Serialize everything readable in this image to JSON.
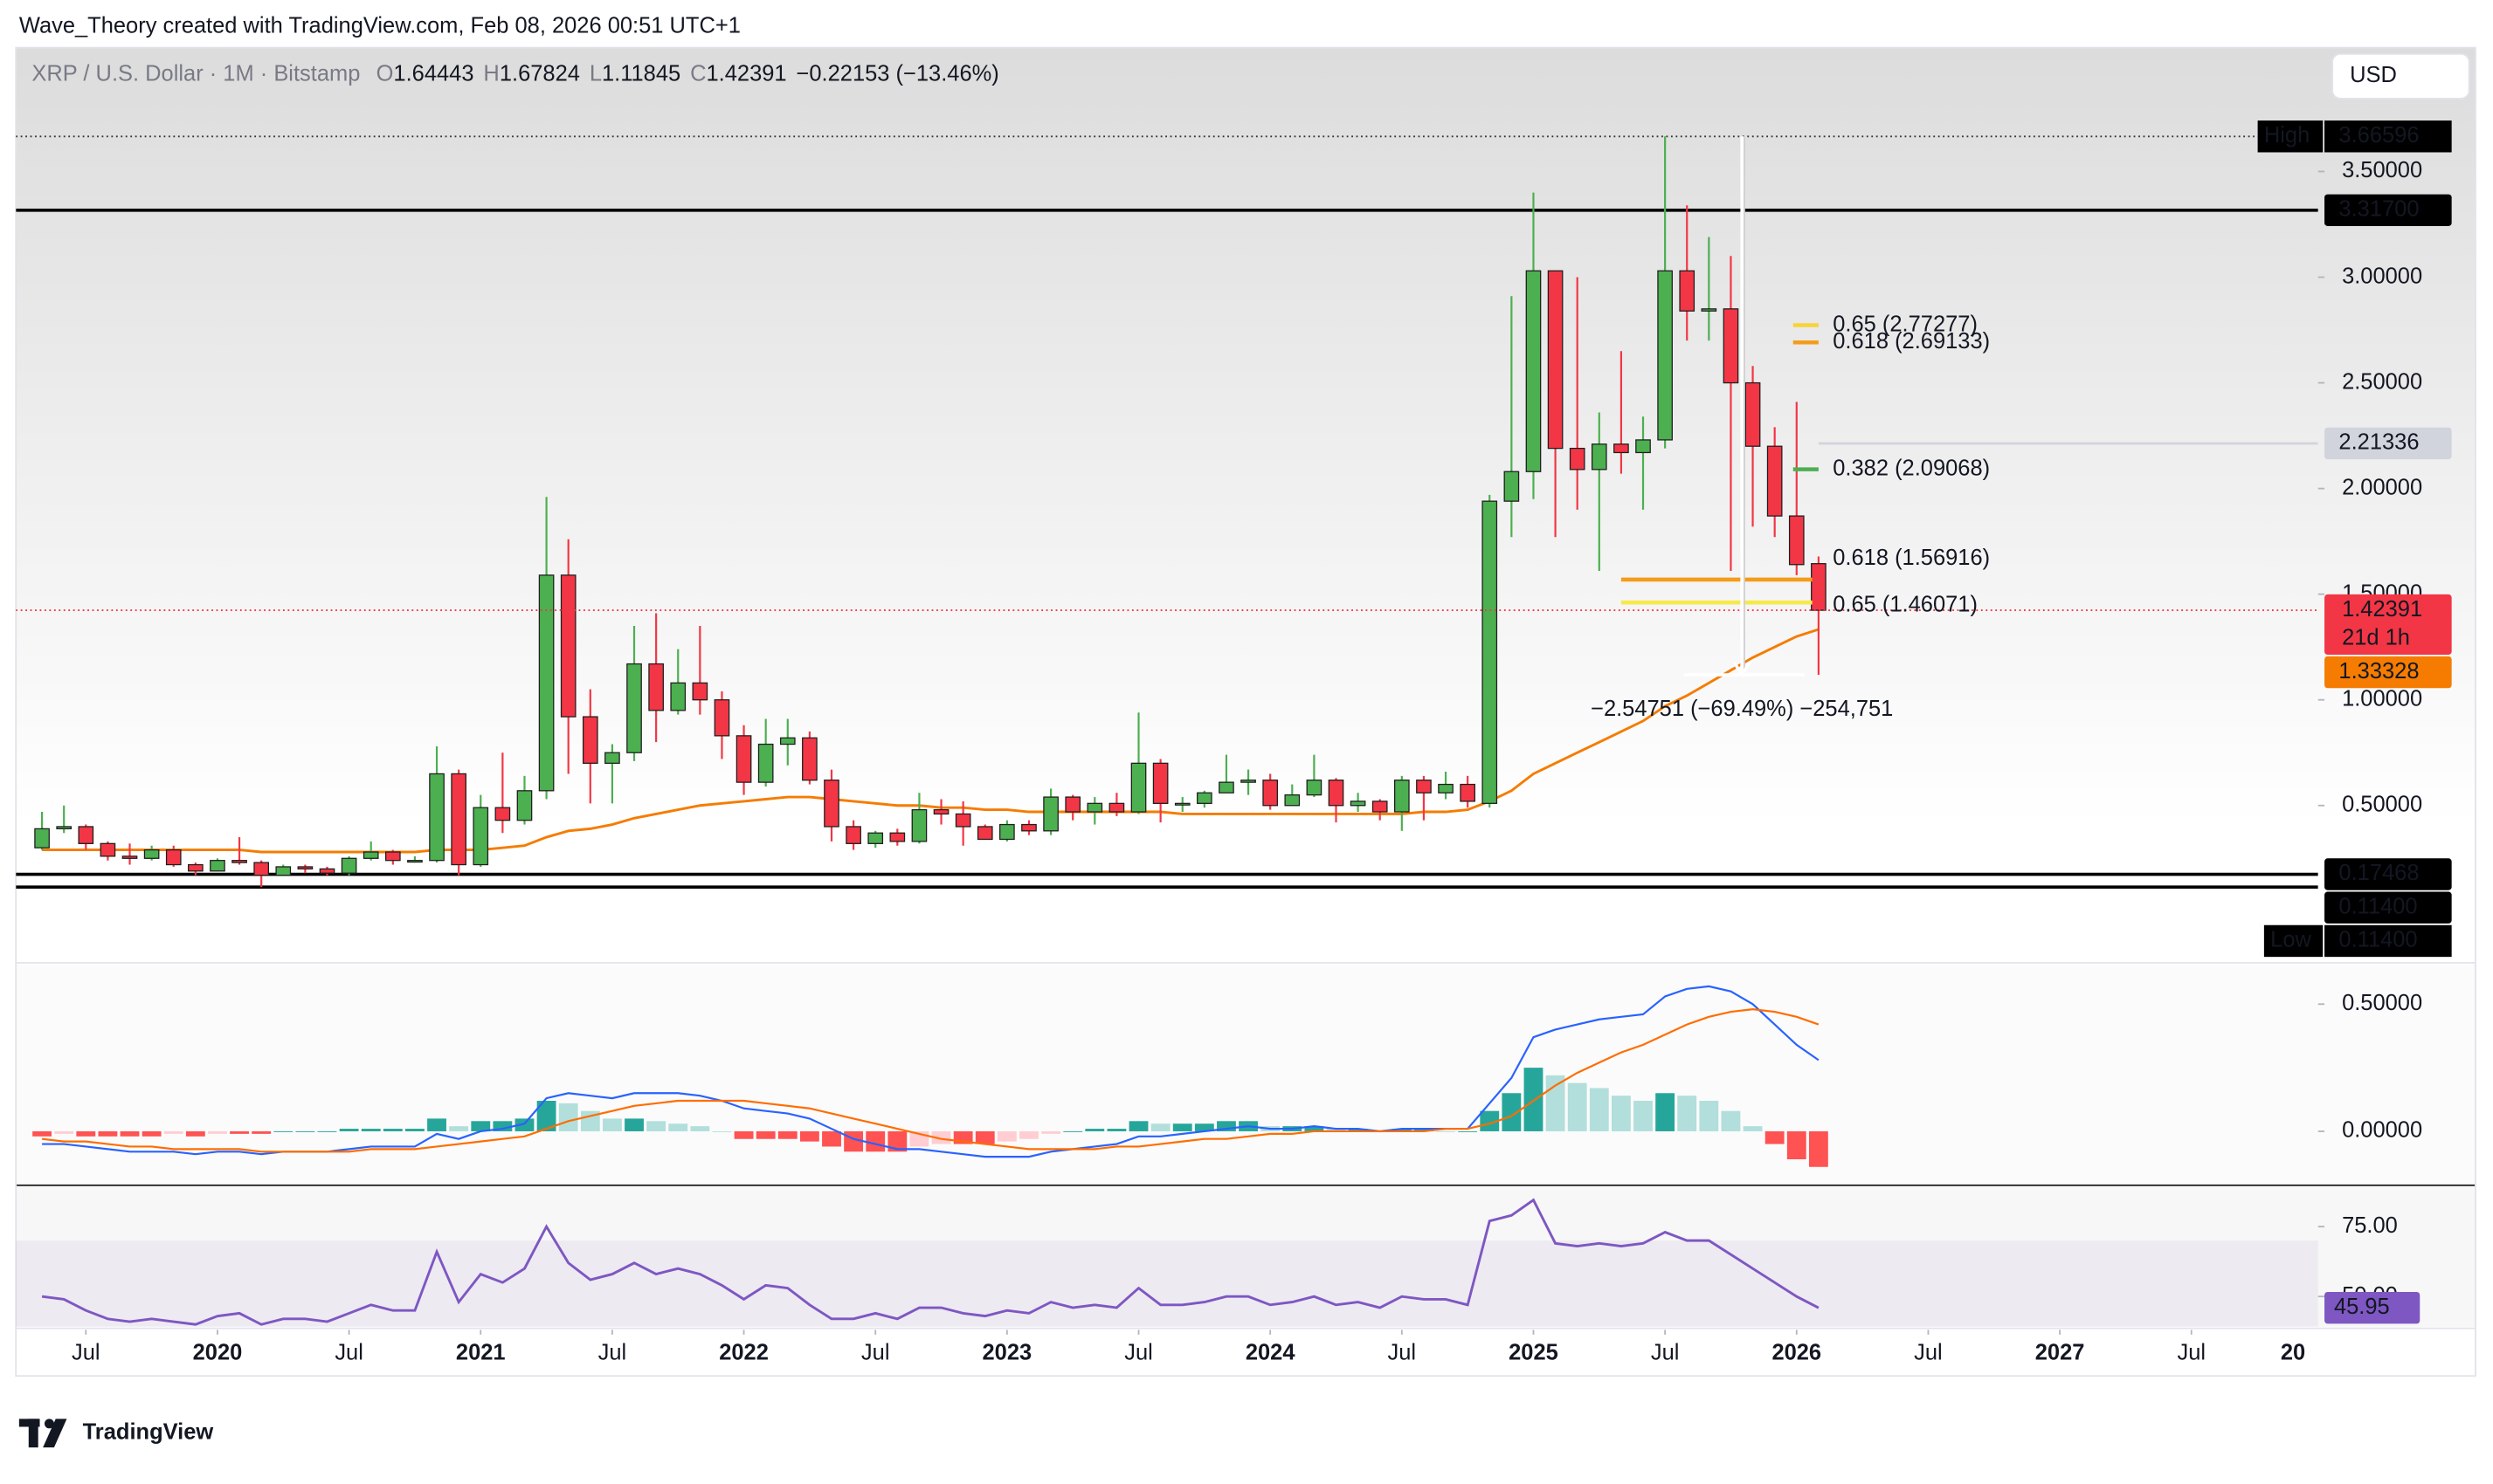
{
  "header": {
    "credit": "Wave_Theory created with TradingView.com, Feb 08, 2026 00:51 UTC+1",
    "currency": "USD"
  },
  "footer": {
    "brand": "TradingView"
  },
  "chart_data": [
    {
      "type": "candlestick",
      "title": "XRP / U.S. Dollar · 1M · Bitstamp",
      "legend_keys": [
        "O",
        "H",
        "L",
        "C"
      ],
      "change_label": "−0.22153 (−13.46%)",
      "up_color": "#4caf50",
      "down_color": "#f23645",
      "x": [
        "2019-05",
        "2019-06",
        "2019-07",
        "2019-08",
        "2019-09",
        "2019-10",
        "2019-11",
        "2019-12",
        "2020-01",
        "2020-02",
        "2020-03",
        "2020-04",
        "2020-05",
        "2020-06",
        "2020-07",
        "2020-08",
        "2020-09",
        "2020-10",
        "2020-11",
        "2020-12",
        "2021-01",
        "2021-02",
        "2021-03",
        "2021-04",
        "2021-05",
        "2021-06",
        "2021-07",
        "2021-08",
        "2021-09",
        "2021-10",
        "2021-11",
        "2021-12",
        "2022-01",
        "2022-02",
        "2022-03",
        "2022-04",
        "2022-05",
        "2022-06",
        "2022-07",
        "2022-08",
        "2022-09",
        "2022-10",
        "2022-11",
        "2022-12",
        "2023-01",
        "2023-02",
        "2023-03",
        "2023-04",
        "2023-05",
        "2023-06",
        "2023-07",
        "2023-08",
        "2023-09",
        "2023-10",
        "2023-11",
        "2023-12",
        "2024-01",
        "2024-02",
        "2024-03",
        "2024-04",
        "2024-05",
        "2024-06",
        "2024-07",
        "2024-08",
        "2024-09",
        "2024-10",
        "2024-11",
        "2024-12",
        "2025-01",
        "2025-02",
        "2025-03",
        "2025-04",
        "2025-05",
        "2025-06",
        "2025-07",
        "2025-08",
        "2025-09",
        "2025-10",
        "2025-11",
        "2025-12",
        "2026-01",
        "2026-02"
      ],
      "open": [
        0.3,
        0.39,
        0.4,
        0.32,
        0.26,
        0.25,
        0.29,
        0.22,
        0.19,
        0.24,
        0.23,
        0.17,
        0.21,
        0.2,
        0.18,
        0.25,
        0.28,
        0.24,
        0.24,
        0.65,
        0.22,
        0.49,
        0.43,
        0.57,
        1.59,
        0.92,
        0.7,
        0.75,
        1.17,
        0.95,
        1.08,
        1.0,
        0.83,
        0.61,
        0.79,
        0.82,
        0.62,
        0.4,
        0.32,
        0.37,
        0.33,
        0.48,
        0.46,
        0.4,
        0.34,
        0.41,
        0.38,
        0.54,
        0.47,
        0.51,
        0.47,
        0.7,
        0.51,
        0.51,
        0.56,
        0.61,
        0.62,
        0.5,
        0.55,
        0.62,
        0.5,
        0.52,
        0.47,
        0.62,
        0.56,
        0.6,
        0.51,
        1.94,
        2.08,
        3.03,
        2.19,
        2.09,
        2.21,
        2.17,
        2.23,
        3.03,
        2.84,
        2.85,
        2.5,
        2.2,
        1.87,
        1.64443
      ],
      "high": [
        0.47,
        0.5,
        0.41,
        0.33,
        0.32,
        0.31,
        0.31,
        0.23,
        0.25,
        0.35,
        0.24,
        0.22,
        0.22,
        0.21,
        0.26,
        0.33,
        0.29,
        0.26,
        0.78,
        0.67,
        0.55,
        0.75,
        0.64,
        1.96,
        1.76,
        1.05,
        0.79,
        1.35,
        1.41,
        1.24,
        1.35,
        1.04,
        0.88,
        0.91,
        0.91,
        0.85,
        0.67,
        0.43,
        0.38,
        0.39,
        0.56,
        0.53,
        0.52,
        0.41,
        0.43,
        0.43,
        0.58,
        0.55,
        0.54,
        0.56,
        0.94,
        0.72,
        0.54,
        0.57,
        0.74,
        0.67,
        0.65,
        0.6,
        0.74,
        0.63,
        0.56,
        0.53,
        0.64,
        0.64,
        0.66,
        0.64,
        1.97,
        2.91,
        3.4,
        3.03,
        3.0,
        2.36,
        2.65,
        2.34,
        3.66596,
        3.34,
        3.19,
        3.1,
        2.58,
        2.29,
        2.41,
        1.67824
      ],
      "low": [
        0.29,
        0.37,
        0.29,
        0.24,
        0.22,
        0.24,
        0.21,
        0.17,
        0.19,
        0.22,
        0.114,
        0.17,
        0.18,
        0.17,
        0.17,
        0.24,
        0.22,
        0.23,
        0.23,
        0.17,
        0.21,
        0.37,
        0.41,
        0.53,
        0.65,
        0.51,
        0.51,
        0.71,
        0.8,
        0.93,
        0.93,
        0.72,
        0.55,
        0.59,
        0.69,
        0.6,
        0.33,
        0.29,
        0.3,
        0.31,
        0.32,
        0.41,
        0.31,
        0.34,
        0.33,
        0.36,
        0.36,
        0.43,
        0.41,
        0.45,
        0.46,
        0.42,
        0.47,
        0.49,
        0.56,
        0.55,
        0.48,
        0.5,
        0.54,
        0.42,
        0.47,
        0.43,
        0.38,
        0.43,
        0.53,
        0.49,
        0.49,
        1.77,
        1.95,
        1.77,
        1.9,
        1.61,
        2.07,
        1.9,
        2.19,
        2.7,
        2.7,
        1.61,
        1.82,
        1.77,
        1.59,
        1.11845
      ],
      "close": [
        0.39,
        0.4,
        0.32,
        0.26,
        0.25,
        0.29,
        0.22,
        0.19,
        0.24,
        0.23,
        0.17,
        0.21,
        0.2,
        0.18,
        0.25,
        0.28,
        0.24,
        0.24,
        0.65,
        0.22,
        0.49,
        0.43,
        0.57,
        1.59,
        0.92,
        0.7,
        0.75,
        1.17,
        0.95,
        1.08,
        1.0,
        0.83,
        0.61,
        0.79,
        0.82,
        0.62,
        0.4,
        0.32,
        0.37,
        0.33,
        0.48,
        0.46,
        0.4,
        0.34,
        0.41,
        0.38,
        0.54,
        0.47,
        0.51,
        0.47,
        0.7,
        0.51,
        0.51,
        0.56,
        0.61,
        0.62,
        0.5,
        0.55,
        0.62,
        0.5,
        0.52,
        0.47,
        0.62,
        0.56,
        0.6,
        0.52,
        1.94,
        2.08,
        3.03,
        2.19,
        2.09,
        2.21,
        2.17,
        2.23,
        3.03,
        2.84,
        2.85,
        2.5,
        2.2,
        1.87,
        1.64,
        1.42391
      ],
      "overlays": [
        {
          "color": "#f57c00",
          "values": [
            0.29,
            0.29,
            0.29,
            0.29,
            0.29,
            0.29,
            0.29,
            0.29,
            0.29,
            0.29,
            0.28,
            0.28,
            0.28,
            0.28,
            0.28,
            0.28,
            0.28,
            0.28,
            0.29,
            0.29,
            0.29,
            0.3,
            0.31,
            0.35,
            0.38,
            0.39,
            0.41,
            0.44,
            0.46,
            0.48,
            0.5,
            0.51,
            0.52,
            0.53,
            0.54,
            0.54,
            0.53,
            0.52,
            0.51,
            0.5,
            0.5,
            0.49,
            0.49,
            0.48,
            0.48,
            0.47,
            0.47,
            0.47,
            0.47,
            0.47,
            0.47,
            0.47,
            0.46,
            0.46,
            0.46,
            0.46,
            0.46,
            0.46,
            0.46,
            0.46,
            0.46,
            0.46,
            0.46,
            0.47,
            0.47,
            0.48,
            0.52,
            0.57,
            0.65,
            0.7,
            0.75,
            0.8,
            0.85,
            0.9,
            0.97,
            1.02,
            1.08,
            1.14,
            1.2,
            1.25,
            1.3,
            1.33328
          ]
        }
      ],
      "ylim": [
        -0.237,
        4.086
      ],
      "yticks": [
        {
          "value": 0.5,
          "label": "0.50000"
        },
        {
          "value": 1,
          "label": "1.00000"
        },
        {
          "value": 1.5,
          "label": "1.50000"
        },
        {
          "value": 2,
          "label": "2.00000"
        },
        {
          "value": 2.5,
          "label": "2.50000"
        },
        {
          "value": 3,
          "label": "3.00000"
        },
        {
          "value": 3.5,
          "label": "3.50000"
        }
      ],
      "xticks": [
        {
          "value": "2019-07",
          "label": "Jul"
        },
        {
          "value": "2020-01",
          "label": "2020"
        },
        {
          "value": "2020-07",
          "label": "Jul"
        },
        {
          "value": "2021-01",
          "label": "2021"
        },
        {
          "value": "2021-07",
          "label": "Jul"
        },
        {
          "value": "2022-01",
          "label": "2022"
        },
        {
          "value": "2022-07",
          "label": "Jul"
        },
        {
          "value": "2023-01",
          "label": "2023"
        },
        {
          "value": "2023-07",
          "label": "Jul"
        },
        {
          "value": "2024-01",
          "label": "2024"
        },
        {
          "value": "2024-07",
          "label": "Jul"
        },
        {
          "value": "2025-01",
          "label": "2025"
        },
        {
          "value": "2025-07",
          "label": "Jul"
        },
        {
          "value": "2026-01",
          "label": "2026"
        },
        {
          "value": "2026-07",
          "label": "Jul"
        },
        {
          "value": "2027-01",
          "label": "2027"
        },
        {
          "value": "2027-07",
          "label": "Jul"
        },
        {
          "value": "2028-01",
          "label": "20"
        }
      ],
      "grid": false,
      "high_marker": {
        "text": "High",
        "value": 3.66596
      },
      "low_marker": {
        "text": "Low",
        "value": 0.114,
        "label": "0.11400"
      },
      "countdown": "21d 1h",
      "levels": [
        {
          "value": 3.317,
          "label": "3.31700",
          "color": "#000000",
          "text_color": "#ffffff"
        },
        {
          "value": 2.21336,
          "color": "#d1d4dc",
          "text_color": "#131722"
        },
        {
          "value": 0.17468,
          "color": "#000000",
          "text_color": "#ffffff"
        },
        {
          "value": 0.114,
          "label": "0.11400",
          "color": "#000000",
          "text_color": "#ffffff"
        }
      ],
      "fib_upper": [
        {
          "label": "0.65 (2.77277)",
          "value": 2.77277,
          "color": "#f7d33a"
        },
        {
          "label": "0.618 (2.69133)",
          "value": 2.69133,
          "color": "#f59c1a"
        },
        {
          "label": "0.382 (2.09068)",
          "value": 2.09068,
          "color": "#4caf50"
        }
      ],
      "fib_lower": [
        {
          "label": "0.618 (1.56916)",
          "value": 1.56916,
          "color": "#f59c1a"
        },
        {
          "label": "0.65 (1.46071)",
          "value": 1.46071,
          "color": "#f7e94a"
        }
      ],
      "measure": {
        "label": "−2.54751 (−69.49%) −254,751",
        "from": 3.66596,
        "to": 1.11845
      }
    },
    {
      "type": "macd",
      "lines": [
        {
          "color": "#2962ff",
          "values": [
            -0.05,
            -0.05,
            -0.06,
            -0.07,
            -0.08,
            -0.08,
            -0.08,
            -0.09,
            -0.08,
            -0.08,
            -0.09,
            -0.08,
            -0.08,
            -0.08,
            -0.07,
            -0.06,
            -0.06,
            -0.06,
            -0.01,
            -0.03,
            0.0,
            0.01,
            0.03,
            0.13,
            0.15,
            0.14,
            0.13,
            0.15,
            0.15,
            0.15,
            0.14,
            0.12,
            0.09,
            0.08,
            0.07,
            0.05,
            0.01,
            -0.03,
            -0.05,
            -0.07,
            -0.07,
            -0.08,
            -0.09,
            -0.1,
            -0.1,
            -0.1,
            -0.08,
            -0.07,
            -0.06,
            -0.05,
            -0.02,
            -0.02,
            -0.01,
            0.0,
            0.01,
            0.02,
            0.01,
            0.01,
            0.02,
            0.01,
            0.01,
            0.0,
            0.01,
            0.01,
            0.01,
            0.01,
            0.11,
            0.21,
            0.37,
            0.4,
            0.42,
            0.44,
            0.45,
            0.46,
            0.53,
            0.56,
            0.57,
            0.55,
            0.5,
            0.42,
            0.34,
            0.28
          ]
        },
        {
          "color": "#ff6d00",
          "values": [
            -0.03,
            -0.04,
            -0.04,
            -0.05,
            -0.06,
            -0.06,
            -0.07,
            -0.07,
            -0.07,
            -0.07,
            -0.08,
            -0.08,
            -0.08,
            -0.08,
            -0.08,
            -0.07,
            -0.07,
            -0.07,
            -0.06,
            -0.05,
            -0.04,
            -0.03,
            -0.02,
            0.01,
            0.04,
            0.06,
            0.08,
            0.1,
            0.11,
            0.12,
            0.12,
            0.12,
            0.12,
            0.11,
            0.1,
            0.09,
            0.07,
            0.05,
            0.03,
            0.01,
            -0.01,
            -0.03,
            -0.04,
            -0.05,
            -0.06,
            -0.07,
            -0.07,
            -0.07,
            -0.07,
            -0.06,
            -0.06,
            -0.05,
            -0.04,
            -0.03,
            -0.03,
            -0.02,
            -0.01,
            -0.01,
            0.0,
            0.0,
            0.0,
            0.0,
            0.0,
            0.0,
            0.01,
            0.01,
            0.03,
            0.06,
            0.12,
            0.18,
            0.23,
            0.27,
            0.31,
            0.34,
            0.38,
            0.42,
            0.45,
            0.47,
            0.48,
            0.47,
            0.45,
            0.42
          ]
        }
      ],
      "histogram": {
        "colors": [
          "#26a69a",
          "#b2dfdb",
          "#ffcdd2",
          "#ff5252"
        ],
        "values": [
          -0.02,
          -0.01,
          -0.02,
          -0.02,
          -0.02,
          -0.02,
          -0.01,
          -0.02,
          -0.01,
          -0.01,
          -0.01,
          0.0,
          0.0,
          0.0,
          0.01,
          0.01,
          0.01,
          0.01,
          0.05,
          0.02,
          0.04,
          0.04,
          0.05,
          0.12,
          0.11,
          0.08,
          0.05,
          0.05,
          0.04,
          0.03,
          0.02,
          0.0,
          -0.03,
          -0.03,
          -0.03,
          -0.04,
          -0.06,
          -0.08,
          -0.08,
          -0.08,
          -0.06,
          -0.05,
          -0.05,
          -0.05,
          -0.04,
          -0.03,
          -0.01,
          0.0,
          0.01,
          0.01,
          0.04,
          0.03,
          0.03,
          0.03,
          0.04,
          0.04,
          0.02,
          0.02,
          0.02,
          0.01,
          0.01,
          0.0,
          0.01,
          0.01,
          0.0,
          0.0,
          0.08,
          0.15,
          0.25,
          0.22,
          0.19,
          0.17,
          0.14,
          0.12,
          0.15,
          0.14,
          0.12,
          0.08,
          0.02,
          -0.05,
          -0.11,
          -0.14
        ]
      },
      "ylim": [
        -0.206,
        0.656
      ],
      "yticks": [
        {
          "value": 0.5,
          "label": "0.50000"
        },
        {
          "value": 0,
          "label": "0.00000"
        }
      ]
    },
    {
      "type": "line",
      "color": "#7e57c2",
      "values": [
        50,
        49,
        45,
        42,
        41,
        42,
        41,
        40,
        43,
        44,
        40,
        42,
        42,
        41,
        44,
        47,
        45,
        45,
        66,
        48,
        58,
        55,
        60,
        75,
        62,
        56,
        58,
        62,
        58,
        60,
        58,
        54,
        49,
        54,
        53,
        47,
        42,
        42,
        44,
        42,
        46,
        46,
        44,
        43,
        45,
        44,
        48,
        46,
        47,
        46,
        53,
        47,
        47,
        48,
        50,
        50,
        47,
        48,
        50,
        47,
        48,
        46,
        50,
        49,
        49,
        47,
        77,
        79,
        84.5,
        69,
        68,
        69,
        68,
        69,
        73,
        70,
        70,
        65,
        60,
        55,
        50,
        45.95
      ],
      "band": [
        30,
        70
      ],
      "ylim": [
        39.2,
        89.2
      ],
      "yticks": [
        {
          "value": 75,
          "label": "75.00"
        },
        {
          "value": 50,
          "label": "50.00"
        }
      ]
    }
  ]
}
